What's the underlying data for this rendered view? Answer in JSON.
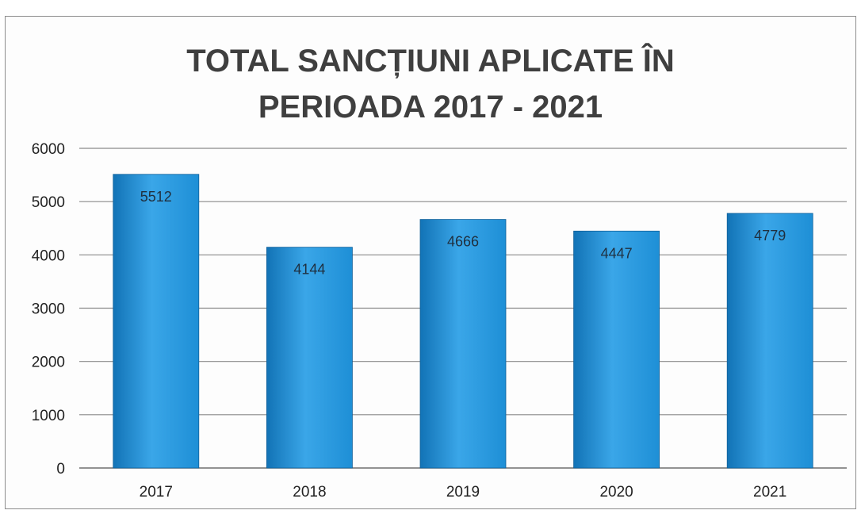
{
  "chart_data": {
    "type": "bar",
    "title": [
      "TOTAL SANCȚIUNI APLICATE ÎN",
      "PERIOADA 2017 - 2021"
    ],
    "categories": [
      "2017",
      "2018",
      "2019",
      "2020",
      "2021"
    ],
    "values": [
      5512,
      4144,
      4666,
      4447,
      4779
    ],
    "data_labels": [
      "5512",
      "4144",
      "4666",
      "4447",
      "4779"
    ],
    "ylim": [
      0,
      6000
    ],
    "yticks": [
      0,
      1000,
      2000,
      3000,
      4000,
      5000,
      6000
    ],
    "grid": true,
    "legend": "none",
    "bar_color": "#1e8fd6",
    "bar_color_dark": "#1273b6",
    "bar_color_light": "#3aa6e8"
  }
}
